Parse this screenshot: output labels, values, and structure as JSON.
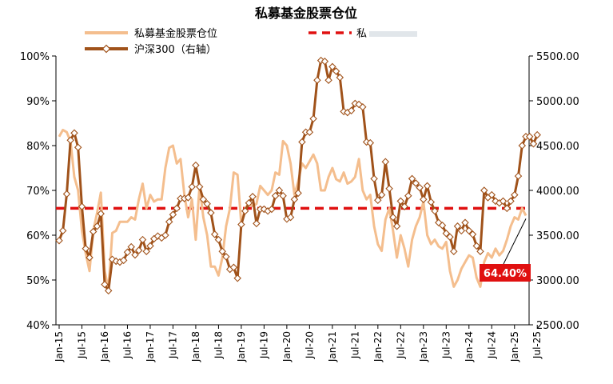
{
  "chart_data": {
    "type": "line",
    "title": "私募基金股票仓位",
    "colors": {
      "position": "#F4BE8E",
      "csi300": "#A0521A",
      "reference": "#E01010",
      "callout_bg": "#E01010",
      "callout_text": "#FFFFFF",
      "axis": "#000000"
    },
    "legend": [
      {
        "key": "position",
        "label": "私募基金股票仓位"
      },
      {
        "key": "csi300",
        "label": "沪深300（右轴）"
      },
      {
        "key": "reference",
        "label": "私"
      }
    ],
    "left_axis": {
      "min": 40,
      "max": 100,
      "step": 10,
      "ticks": [
        "40%",
        "50%",
        "60%",
        "70%",
        "80%",
        "90%",
        "100%"
      ]
    },
    "right_axis": {
      "min": 2500,
      "max": 5500,
      "step": 500,
      "ticks": [
        "2500.00",
        "3000.00",
        "3500.00",
        "4000.00",
        "4500.00",
        "5000.00",
        "5500.00"
      ]
    },
    "x_ticks": [
      "Jan-15",
      "Jul-15",
      "Jan-16",
      "Jul-16",
      "Jan-17",
      "Jul-17",
      "Jan-18",
      "Jul-18",
      "Jan-19",
      "Jul-19",
      "Jan-20",
      "Jul-20",
      "Jan-21",
      "Jul-21",
      "Jan-22",
      "Jul-22",
      "Jan-23",
      "Jul-23",
      "Jan-24",
      "Jul-24",
      "Jan-25",
      "Jul-25"
    ],
    "x_start": "2015-01",
    "reference_value": 66.0,
    "callout": {
      "label": "64.40%",
      "value": 64.4
    },
    "series": [
      {
        "name": "私募基金股票仓位",
        "axis": "left",
        "values": [
          82.0,
          83.5,
          83.0,
          81.0,
          73.0,
          70.0,
          61.0,
          56.0,
          52.0,
          61.0,
          65.0,
          69.5,
          52.0,
          48.0,
          60.5,
          61.0,
          63.0,
          63.0,
          63.0,
          64.0,
          63.5,
          68.0,
          71.5,
          66.0,
          69.0,
          67.5,
          68.0,
          68.0,
          75.0,
          79.5,
          80.0,
          76.0,
          77.0,
          69.0,
          64.0,
          68.0,
          59.0,
          71.0,
          64.0,
          60.0,
          53.0,
          53.0,
          51.0,
          55.0,
          62.0,
          66.0,
          74.0,
          73.5,
          62.5,
          66.0,
          67.0,
          66.5,
          67.0,
          71.0,
          70.0,
          69.0,
          70.0,
          74.0,
          73.5,
          81.0,
          80.0,
          76.0,
          69.0,
          72.0,
          76.0,
          75.0,
          76.5,
          78.0,
          76.0,
          70.0,
          70.0,
          73.0,
          75.0,
          72.5,
          72.0,
          74.0,
          71.5,
          72.0,
          73.0,
          77.0,
          70.0,
          68.0,
          69.0,
          62.0,
          58.0,
          56.5,
          63.5,
          66.0,
          61.0,
          55.0,
          60.0,
          57.0,
          53.0,
          59.0,
          62.0,
          64.0,
          67.5,
          60.0,
          58.0,
          59.0,
          57.5,
          57.0,
          58.5,
          52.0,
          48.5,
          50.0,
          52.5,
          54.0,
          55.5,
          55.0,
          50.5,
          48.5,
          54.0,
          56.0,
          55.0,
          57.0,
          55.5,
          56.5,
          59.0,
          62.0,
          64.0,
          63.5,
          66.0,
          64.4
        ]
      },
      {
        "name": "沪深300（右轴）",
        "axis": "right",
        "values": [
          3440,
          3550,
          3960,
          4560,
          4640,
          4480,
          3820,
          3350,
          3250,
          3540,
          3600,
          3740,
          2950,
          2880,
          3230,
          3210,
          3200,
          3220,
          3310,
          3370,
          3280,
          3330,
          3450,
          3320,
          3380,
          3460,
          3490,
          3470,
          3500,
          3650,
          3730,
          3800,
          3910,
          3910,
          3920,
          4040,
          4280,
          4040,
          3900,
          3850,
          3750,
          3510,
          3450,
          3320,
          3260,
          3120,
          3140,
          3020,
          3620,
          3770,
          3860,
          3930,
          3630,
          3790,
          3790,
          3770,
          3790,
          3940,
          4000,
          3940,
          3680,
          3700,
          3900,
          3970,
          4540,
          4650,
          4650,
          4800,
          5230,
          5450,
          5440,
          5230,
          5380,
          5330,
          5260,
          4880,
          4870,
          4890,
          4970,
          4960,
          4930,
          4540,
          4530,
          4130,
          3890,
          3950,
          4320,
          4020,
          3700,
          3600,
          3880,
          3820,
          3940,
          4130,
          4080,
          4030,
          3900,
          4050,
          3870,
          3770,
          3640,
          3610,
          3520,
          3480,
          3320,
          3600,
          3550,
          3640,
          3550,
          3510,
          3380,
          3320,
          4000,
          3920,
          3950,
          3880,
          3860,
          3880,
          3800,
          3880,
          3950,
          4160,
          4500,
          4600,
          4600,
          4520,
          4620
        ]
      }
    ]
  }
}
